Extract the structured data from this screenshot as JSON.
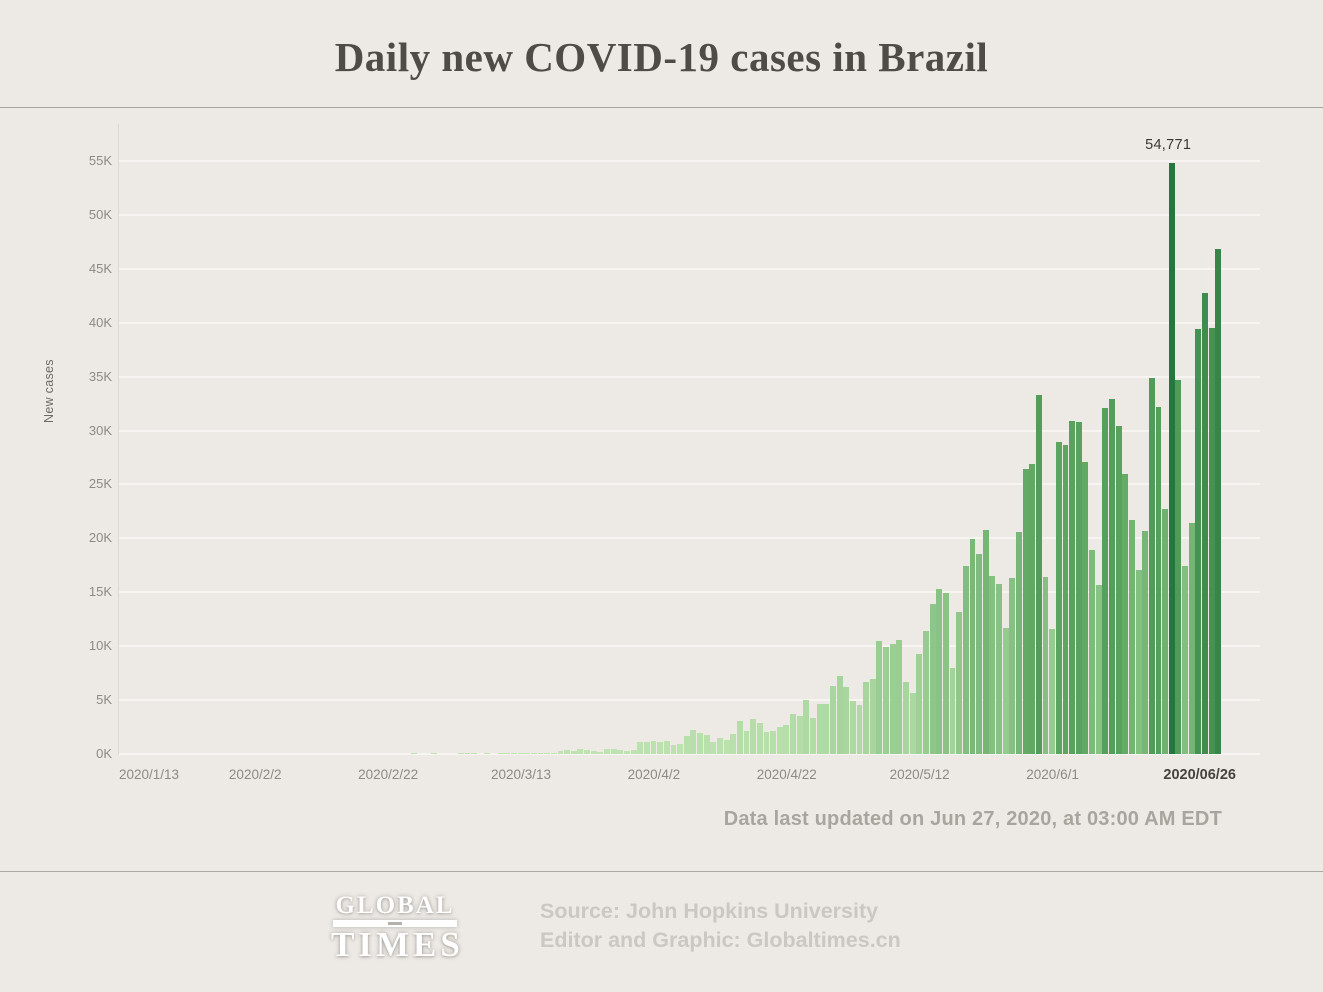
{
  "page": {
    "bg": "#edeae6"
  },
  "header": {
    "title": "Daily new COVID-19 cases in Brazil"
  },
  "chart_data": {
    "type": "bar",
    "title": "Daily new COVID-19 cases in Brazil",
    "xlabel": "",
    "ylabel": "New cases",
    "ylim": [
      0,
      55000
    ],
    "y_tick_step": 5000,
    "y_ticks": [
      "0K",
      "5K",
      "10K",
      "15K",
      "20K",
      "25K",
      "30K",
      "35K",
      "40K",
      "45K",
      "50K",
      "55K"
    ],
    "grid": true,
    "legend": "none",
    "bar_color_low": "#bfe4b1",
    "bar_color_mid": "#5fa862",
    "bar_color_high": "#26773f",
    "gridline_color": "#f7f4f1",
    "x_ticks": [
      {
        "label": "2020/1/13",
        "day": 0,
        "align": "start"
      },
      {
        "label": "2020/2/2",
        "day": 20,
        "align": "center"
      },
      {
        "label": "2020/2/22",
        "day": 40,
        "align": "center"
      },
      {
        "label": "2020/3/13",
        "day": 60,
        "align": "center"
      },
      {
        "label": "2020/4/2",
        "day": 80,
        "align": "center"
      },
      {
        "label": "2020/4/22",
        "day": 100,
        "align": "center"
      },
      {
        "label": "2020/5/12",
        "day": 120,
        "align": "center"
      },
      {
        "label": "2020/6/1",
        "day": 140,
        "align": "center"
      },
      {
        "label": "2020/06/26",
        "day": 165,
        "align": "end",
        "bold": true
      }
    ],
    "annotation": {
      "text": "54,771",
      "day_index": 158
    },
    "dates": [
      "2020/1/13",
      "2020/1/14",
      "2020/1/15",
      "2020/1/16",
      "2020/1/17",
      "2020/1/18",
      "2020/1/19",
      "2020/1/20",
      "2020/1/21",
      "2020/1/22",
      "2020/1/23",
      "2020/1/24",
      "2020/1/25",
      "2020/1/26",
      "2020/1/27",
      "2020/1/28",
      "2020/1/29",
      "2020/1/30",
      "2020/1/31",
      "2020/2/1",
      "2020/2/2",
      "2020/2/3",
      "2020/2/4",
      "2020/2/5",
      "2020/2/6",
      "2020/2/7",
      "2020/2/8",
      "2020/2/9",
      "2020/2/10",
      "2020/2/11",
      "2020/2/12",
      "2020/2/13",
      "2020/2/14",
      "2020/2/15",
      "2020/2/16",
      "2020/2/17",
      "2020/2/18",
      "2020/2/19",
      "2020/2/20",
      "2020/2/21",
      "2020/2/22",
      "2020/2/23",
      "2020/2/24",
      "2020/2/25",
      "2020/2/26",
      "2020/2/27",
      "2020/2/28",
      "2020/2/29",
      "2020/3/1",
      "2020/3/2",
      "2020/3/3",
      "2020/3/4",
      "2020/3/5",
      "2020/3/6",
      "2020/3/7",
      "2020/3/8",
      "2020/3/9",
      "2020/3/10",
      "2020/3/11",
      "2020/3/12",
      "2020/3/13",
      "2020/3/14",
      "2020/3/15",
      "2020/3/16",
      "2020/3/17",
      "2020/3/18",
      "2020/3/19",
      "2020/3/20",
      "2020/3/21",
      "2020/3/22",
      "2020/3/23",
      "2020/3/24",
      "2020/3/25",
      "2020/3/26",
      "2020/3/27",
      "2020/3/28",
      "2020/3/29",
      "2020/3/30",
      "2020/3/31",
      "2020/4/1",
      "2020/4/2",
      "2020/4/3",
      "2020/4/4",
      "2020/4/5",
      "2020/4/6",
      "2020/4/7",
      "2020/4/8",
      "2020/4/9",
      "2020/4/10",
      "2020/4/11",
      "2020/4/12",
      "2020/4/13",
      "2020/4/14",
      "2020/4/15",
      "2020/4/16",
      "2020/4/17",
      "2020/4/18",
      "2020/4/19",
      "2020/4/20",
      "2020/4/21",
      "2020/4/22",
      "2020/4/23",
      "2020/4/24",
      "2020/4/25",
      "2020/4/26",
      "2020/4/27",
      "2020/4/28",
      "2020/4/29",
      "2020/4/30",
      "2020/5/1",
      "2020/5/2",
      "2020/5/3",
      "2020/5/4",
      "2020/5/5",
      "2020/5/6",
      "2020/5/7",
      "2020/5/8",
      "2020/5/9",
      "2020/5/10",
      "2020/5/11",
      "2020/5/12",
      "2020/5/13",
      "2020/5/14",
      "2020/5/15",
      "2020/5/16",
      "2020/5/17",
      "2020/5/18",
      "2020/5/19",
      "2020/5/20",
      "2020/5/21",
      "2020/5/22",
      "2020/5/23",
      "2020/5/24",
      "2020/5/25",
      "2020/5/26",
      "2020/5/27",
      "2020/5/28",
      "2020/5/29",
      "2020/5/30",
      "2020/5/31",
      "2020/6/1",
      "2020/6/2",
      "2020/6/3",
      "2020/6/4",
      "2020/6/5",
      "2020/6/6",
      "2020/6/7",
      "2020/6/8",
      "2020/6/9",
      "2020/6/10",
      "2020/6/11",
      "2020/6/12",
      "2020/6/13",
      "2020/6/14",
      "2020/6/15",
      "2020/6/16",
      "2020/6/17",
      "2020/6/18",
      "2020/6/19",
      "2020/6/20",
      "2020/6/21",
      "2020/6/22",
      "2020/6/23",
      "2020/6/24",
      "2020/6/25",
      "2020/6/26"
    ],
    "values": [
      0,
      0,
      0,
      0,
      0,
      0,
      0,
      0,
      0,
      0,
      0,
      0,
      0,
      0,
      0,
      0,
      0,
      0,
      0,
      0,
      0,
      0,
      0,
      0,
      0,
      0,
      0,
      0,
      0,
      0,
      0,
      0,
      0,
      0,
      0,
      0,
      0,
      0,
      0,
      0,
      0,
      0,
      0,
      0,
      1,
      0,
      0,
      1,
      0,
      0,
      0,
      1,
      1,
      9,
      0,
      12,
      0,
      9,
      18,
      25,
      74,
      27,
      49,
      34,
      57,
      137,
      283,
      359,
      323,
      487,
      352,
      323,
      232,
      482,
      502,
      352,
      323,
      332,
      1138,
      1119,
      1208,
      1146,
      1222,
      852,
      926,
      1661,
      2210,
      1930,
      1781,
      1089,
      1442,
      1261,
      1832,
      3058,
      2105,
      3257,
      2917,
      1997,
      2089,
      2498,
      2678,
      3735,
      3503,
      4970,
      3379,
      4613,
      4616,
      6276,
      7218,
      6209,
      4873,
      4588,
      6633,
      6935,
      10503,
      9888,
      10222,
      10611,
      6638,
      5632,
      9258,
      11385,
      13944,
      15305,
      14919,
      7938,
      13140,
      17408,
      19951,
      18508,
      20803,
      16508,
      15813,
      11687,
      16324,
      20599,
      26417,
      26928,
      33274,
      16409,
      11598,
      28936,
      28633,
      30925,
      30830,
      27075,
      18912,
      15654,
      32091,
      32913,
      30465,
      25982,
      21704,
      17110,
      20647,
      34918,
      32188,
      22765,
      54771,
      34666,
      17459,
      21432,
      39436,
      42725,
      39483,
      46860
    ]
  },
  "footnote": {
    "text": "Data last updated on Jun 27, 2020, at 03:00 AM EDT"
  },
  "footer": {
    "logo_top": "GLOBAL",
    "logo_bottom": "TIMES",
    "source_line1": "Source: John Hopkins University",
    "source_line2": "Editor and Graphic: Globaltimes.cn"
  }
}
